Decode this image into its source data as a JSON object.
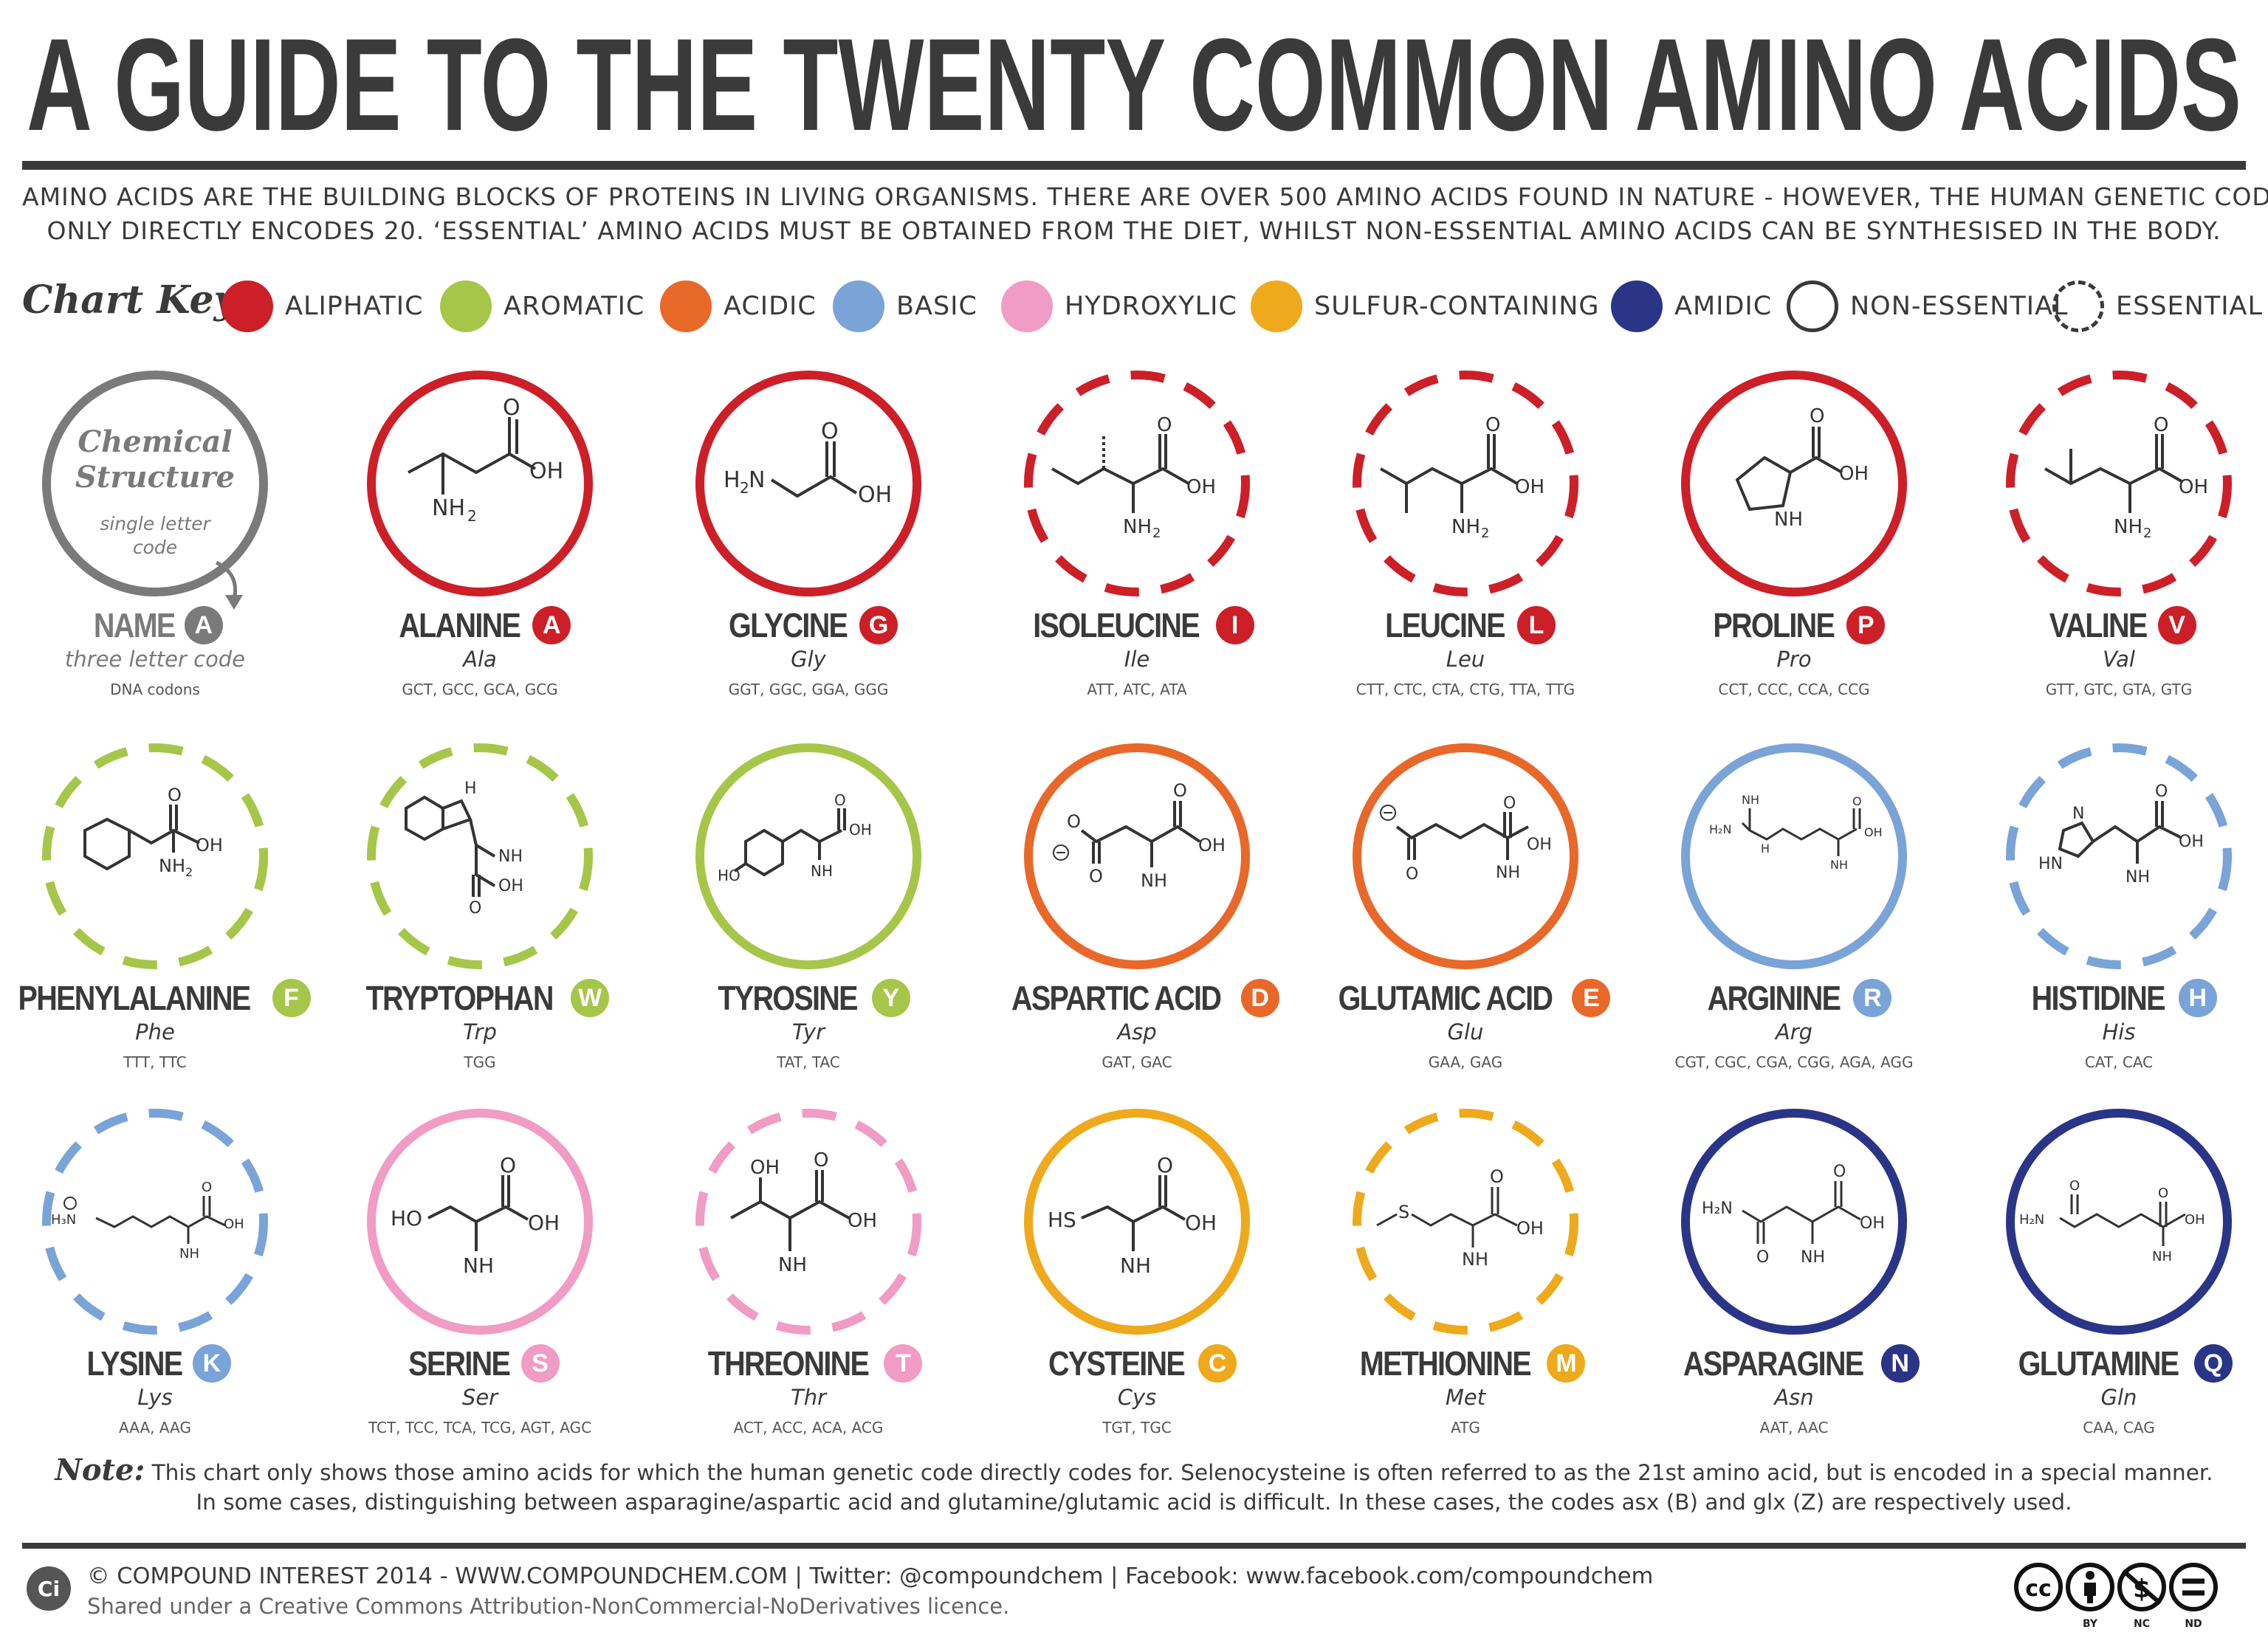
{
  "title": "A GUIDE TO THE TWENTY COMMON AMINO ACIDS",
  "intro": [
    "AMINO ACIDS ARE THE BUILDING BLOCKS OF PROTEINS IN LIVING ORGANISMS. THERE ARE OVER 500 AMINO ACIDS FOUND IN NATURE - HOWEVER, THE HUMAN GENETIC CODE",
    "ONLY DIRECTLY ENCODES 20. ‘ESSENTIAL’ AMINO ACIDS MUST BE OBTAINED FROM THE DIET, WHILST NON-ESSENTIAL AMINO ACIDS CAN BE SYNTHESISED IN THE BODY."
  ],
  "key": {
    "label": "Chart Key:",
    "items": [
      {
        "label": "ALIPHATIC",
        "color": "#cc1f28"
      },
      {
        "label": "AROMATIC",
        "color": "#a6c64a"
      },
      {
        "label": "ACIDIC",
        "color": "#e8682a"
      },
      {
        "label": "BASIC",
        "color": "#7aa3d8"
      },
      {
        "label": "HYDROXYLIC",
        "color": "#f09cc4"
      },
      {
        "label": "SULFUR-CONTAINING",
        "color": "#eeaa1c"
      },
      {
        "label": "AMIDIC",
        "color": "#2a3588"
      },
      {
        "label": "NON-ESSENTIAL",
        "color": "#3a3a3a"
      },
      {
        "label": "ESSENTIAL",
        "color": "#3a3a3a"
      }
    ]
  },
  "legend_cell": {
    "structure_label_1": "Chemical",
    "structure_label_2": "Structure",
    "letter_caption_1": "single letter",
    "letter_caption_2": "code",
    "name": "NAME",
    "letter": "A",
    "three_letter": "three letter code",
    "codons": "DNA codons",
    "color": "#7a7a7a"
  },
  "amino_acids": [
    {
      "name": "ALANINE",
      "letter": "A",
      "abbr": "Ala",
      "codons": "GCT, GCC, GCA, GCG",
      "class": "aliphatic",
      "essential": false,
      "color": "#cc1f28"
    },
    {
      "name": "GLYCINE",
      "letter": "G",
      "abbr": "Gly",
      "codons": "GGT, GGC, GGA, GGG",
      "class": "aliphatic",
      "essential": false,
      "color": "#cc1f28"
    },
    {
      "name": "ISOLEUCINE",
      "letter": "I",
      "abbr": "Ile",
      "codons": "ATT, ATC, ATA",
      "class": "aliphatic",
      "essential": true,
      "color": "#cc1f28"
    },
    {
      "name": "LEUCINE",
      "letter": "L",
      "abbr": "Leu",
      "codons": "CTT, CTC, CTA, CTG, TTA, TTG",
      "class": "aliphatic",
      "essential": true,
      "color": "#cc1f28"
    },
    {
      "name": "PROLINE",
      "letter": "P",
      "abbr": "Pro",
      "codons": "CCT, CCC, CCA, CCG",
      "class": "aliphatic",
      "essential": false,
      "color": "#cc1f28"
    },
    {
      "name": "VALINE",
      "letter": "V",
      "abbr": "Val",
      "codons": "GTT, GTC, GTA, GTG",
      "class": "aliphatic",
      "essential": true,
      "color": "#cc1f28"
    },
    {
      "name": "PHENYLALANINE",
      "letter": "F",
      "abbr": "Phe",
      "codons": "TTT, TTC",
      "class": "aromatic",
      "essential": true,
      "color": "#a6c64a"
    },
    {
      "name": "TRYPTOPHAN",
      "letter": "W",
      "abbr": "Trp",
      "codons": "TGG",
      "class": "aromatic",
      "essential": true,
      "color": "#a6c64a"
    },
    {
      "name": "TYROSINE",
      "letter": "Y",
      "abbr": "Tyr",
      "codons": "TAT, TAC",
      "class": "aromatic",
      "essential": false,
      "color": "#a6c64a"
    },
    {
      "name": "ASPARTIC ACID",
      "letter": "D",
      "abbr": "Asp",
      "codons": "GAT, GAC",
      "class": "acidic",
      "essential": false,
      "color": "#e8682a"
    },
    {
      "name": "GLUTAMIC ACID",
      "letter": "E",
      "abbr": "Glu",
      "codons": "GAA, GAG",
      "class": "acidic",
      "essential": false,
      "color": "#e8682a"
    },
    {
      "name": "ARGININE",
      "letter": "R",
      "abbr": "Arg",
      "codons": "CGT, CGC, CGA, CGG, AGA, AGG",
      "class": "basic",
      "essential": false,
      "color": "#7aa3d8"
    },
    {
      "name": "HISTIDINE",
      "letter": "H",
      "abbr": "His",
      "codons": "CAT, CAC",
      "class": "basic",
      "essential": true,
      "color": "#7aa3d8"
    },
    {
      "name": "LYSINE",
      "letter": "K",
      "abbr": "Lys",
      "codons": "AAA, AAG",
      "class": "basic",
      "essential": true,
      "color": "#7aa3d8"
    },
    {
      "name": "SERINE",
      "letter": "S",
      "abbr": "Ser",
      "codons": "TCT, TCC, TCA, TCG, AGT, AGC",
      "class": "hydroxylic",
      "essential": false,
      "color": "#f09cc4"
    },
    {
      "name": "THREONINE",
      "letter": "T",
      "abbr": "Thr",
      "codons": "ACT, ACC, ACA, ACG",
      "class": "hydroxylic",
      "essential": true,
      "color": "#f09cc4"
    },
    {
      "name": "CYSTEINE",
      "letter": "C",
      "abbr": "Cys",
      "codons": "TGT, TGC",
      "class": "sulfur-containing",
      "essential": false,
      "color": "#eeaa1c"
    },
    {
      "name": "METHIONINE",
      "letter": "M",
      "abbr": "Met",
      "codons": "ATG",
      "class": "sulfur-containing",
      "essential": true,
      "color": "#eeaa1c"
    },
    {
      "name": "ASPARAGINE",
      "letter": "N",
      "abbr": "Asn",
      "codons": "AAT, AAC",
      "class": "amidic",
      "essential": false,
      "color": "#2a3588"
    },
    {
      "name": "GLUTAMINE",
      "letter": "Q",
      "abbr": "Gln",
      "codons": "CAA, CAG",
      "class": "amidic",
      "essential": false,
      "color": "#2a3588"
    }
  ],
  "note": {
    "label": "Note:",
    "line1": "This chart only shows those amino acids for which the human genetic code directly codes for. Selenocysteine is often referred to as the 21st amino acid, but is encoded in a special manner.",
    "line2": "In some cases, distinguishing between asparagine/aspartic acid and glutamine/glutamic acid is difficult. In these cases, the codes asx (B) and glx (Z) are respectively used."
  },
  "footer": {
    "logo": "Ci",
    "credit": "© COMPOUND INTEREST 2014 - WWW.COMPOUNDCHEM.COM | Twitter: @compoundchem | Facebook: www.facebook.com/compoundchem",
    "licence_text": "Shared under a Creative Commons Attribution-NonCommercial-NoDerivatives licence.",
    "licence_icons": [
      "cc",
      "BY",
      "NC",
      "ND"
    ],
    "icon_names": [
      "cc-icon",
      "by-icon",
      "nc-icon",
      "nd-icon"
    ]
  }
}
